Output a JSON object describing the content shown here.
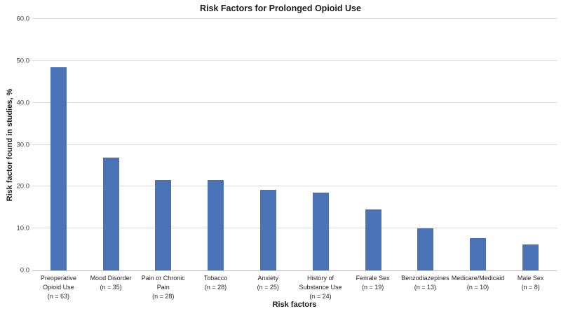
{
  "figure": {
    "title": "Risk Factors for Prolonged Opioid Use"
  },
  "chart_data": {
    "type": "bar",
    "title": "Risk Factors for Prolonged Opioid Use",
    "xlabel": "Risk factors",
    "ylabel": "Risk factor found in studies, %",
    "ylim": [
      0,
      60
    ],
    "ytick_step": 10,
    "ytick_labels": [
      "0.0",
      "10.0",
      "20.0",
      "30.0",
      "40.0",
      "50.0",
      "60.0"
    ],
    "grid": true,
    "legend": "none",
    "bar_color": "#4A72B6",
    "gridline_color": "#dcdcdc",
    "axis_line_color": "#bfbfbf",
    "categories": [
      "Preoperative Opioid Use (n = 63)",
      "Mood Disorder (n = 35)",
      "Pain or Chronic Pain (n = 28)",
      "Tobacco (n = 28)",
      "Anxiety (n = 25)",
      "History of Substance Use (n = 24)",
      "Female Sex (n = 19)",
      "Benzodiazepines (n = 13)",
      "Medicare/Medicaid (n = 10)",
      "Male Sex (n = 8)"
    ],
    "category_label_lines": [
      [
        "Preoperative",
        "Opioid Use",
        "(n = 63)"
      ],
      [
        "Mood Disorder",
        "(n = 35)"
      ],
      [
        "Pain or Chronic",
        "Pain",
        "(n = 28)"
      ],
      [
        "Tobacco",
        "(n = 28)"
      ],
      [
        "Anxiety",
        "(n = 25)"
      ],
      [
        "History of",
        "Substance Use",
        "(n = 24)"
      ],
      [
        "Female Sex",
        "(n = 19)"
      ],
      [
        "Benzodiazepines",
        "(n = 13)"
      ],
      [
        "Medicare/Medicaid",
        "(n = 10)"
      ],
      [
        "Male Sex",
        "(n = 8)"
      ]
    ],
    "values": [
      48.5,
      26.9,
      21.5,
      21.5,
      19.2,
      18.5,
      14.6,
      10.0,
      7.7,
      6.2
    ]
  }
}
